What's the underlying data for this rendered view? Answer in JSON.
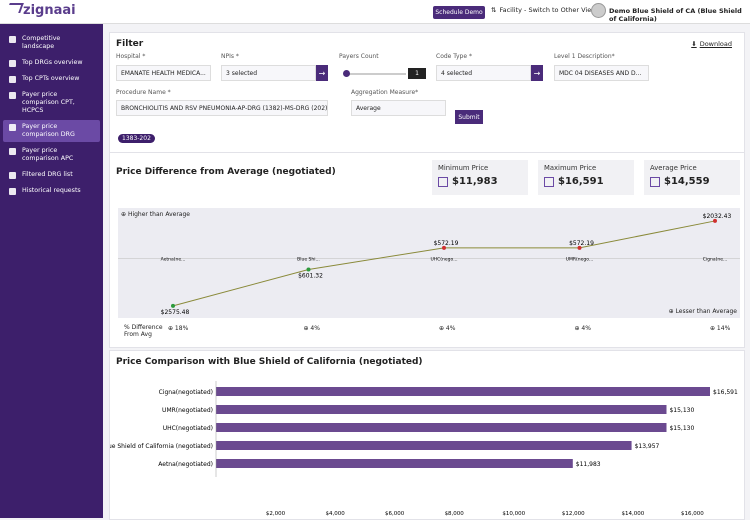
{
  "header": {
    "logo": "zignaai",
    "schedule_demo": "Schedule Demo",
    "facility_label": "Facility - Switch to Other Views",
    "user": "Demo Blue Shield of CA (Blue Shield of California)"
  },
  "sidebar": {
    "items": [
      {
        "label": "Competitive landscape"
      },
      {
        "label": "Top DRGs overview"
      },
      {
        "label": "Top CPTs overview"
      },
      {
        "label": "Payer price comparison CPT, HCPCS"
      },
      {
        "label": "Payer price comparison DRG"
      },
      {
        "label": "Payer price comparison APC"
      },
      {
        "label": "Filtered DRG list"
      },
      {
        "label": "Historical requests"
      }
    ]
  },
  "filter": {
    "title": "Filter",
    "download": "Download",
    "hospital_label": "Hospital *",
    "hospital_value": "EMANATE HEALTH MEDICA...",
    "npis_label": "NPIs *",
    "npis_value": "3 selected",
    "payers_label": "Payers Count",
    "payers_value": "1",
    "code_type_label": "Code Type *",
    "code_type_value": "4 selected",
    "level_label": "Level 1 Description*",
    "level_value": "MDC 04 DISEASES AND D...",
    "procedure_label": "Procedure Name *",
    "procedure_value": "BRONCHIOLITIS AND RSV PNEUMONIA-AP-DRG (1382)-MS-DRG (202)",
    "aggregation_label": "Aggregation Measure*",
    "aggregation_value": "Average",
    "submit": "Submit",
    "chip": "1383-202"
  },
  "diff": {
    "title": "Price Difference from Average (negotiated)",
    "min_label": "Minimum Price",
    "min_value": "$11,983",
    "max_label": "Maximum Price",
    "max_value": "$16,591",
    "avg_label": "Average Price",
    "avg_value": "$14,559",
    "higher": "Higher than Average",
    "lower": "Lesser than Average",
    "pct_label": "% Difference From Avg",
    "payers": [
      "Aetna(ne...",
      "Blue Shi...",
      "UHC(nego...",
      "UMR(nego...",
      "Cigna(ne..."
    ],
    "values": [
      "$2575.48",
      "$601.32",
      "$572.19",
      "$572.19",
      "$2032.43"
    ],
    "pcts": [
      "18%",
      "4%",
      "4%",
      "4%",
      "14%"
    ]
  },
  "comparison": {
    "title": "Price Comparison with Blue Shield of California (negotiated)"
  },
  "chart_data": [
    {
      "type": "line",
      "categories": [
        "Aetna(ne...",
        "Blue Shi...",
        "UHC(nego...",
        "UMR(nego...",
        "Cigna(ne..."
      ],
      "values": [
        -2575.48,
        -601.32,
        572.19,
        572.19,
        2032.43
      ]
    },
    {
      "type": "bar",
      "categories": [
        "Cigna(negotiated)",
        "UMR(negotiated)",
        "UHC(negotiated)",
        "Blue Shield of California (negotiated)",
        "Aetna(negotiated)"
      ],
      "values": [
        16591,
        15130,
        15130,
        13957,
        11983
      ],
      "labels": [
        "$16,591",
        "$15,130",
        "$15,130",
        "$13,957",
        "$11,983"
      ],
      "xticks": [
        "$2,000",
        "$4,000",
        "$6,000",
        "$8,000",
        "$10,000",
        "$12,000",
        "$14,000",
        "$16,000"
      ],
      "xlim": [
        0,
        16591
      ]
    }
  ]
}
